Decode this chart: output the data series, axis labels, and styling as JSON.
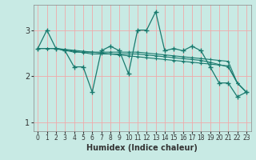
{
  "xlabel": "Humidex (Indice chaleur)",
  "background_color": "#c8eae4",
  "grid_color": "#f0aaaa",
  "line_color": "#1a7a6e",
  "x_min": -0.5,
  "x_max": 23.5,
  "y_min": 0.8,
  "y_max": 3.55,
  "yticks": [
    1,
    2,
    3
  ],
  "xticks": [
    0,
    1,
    2,
    3,
    4,
    5,
    6,
    7,
    8,
    9,
    10,
    11,
    12,
    13,
    14,
    15,
    16,
    17,
    18,
    19,
    20,
    21,
    22,
    23
  ],
  "series": [
    [
      2.6,
      3.0,
      2.6,
      2.55,
      2.2,
      2.2,
      1.65,
      2.55,
      2.65,
      2.55,
      2.05,
      3.0,
      3.0,
      3.4,
      2.55,
      2.6,
      2.55,
      2.65,
      2.55,
      2.2,
      1.85,
      1.85,
      1.55,
      1.65
    ],
    [
      2.6,
      2.6,
      2.6,
      2.58,
      2.56,
      2.54,
      2.52,
      2.5,
      2.48,
      2.46,
      2.44,
      2.42,
      2.4,
      2.38,
      2.36,
      2.34,
      2.32,
      2.3,
      2.28,
      2.26,
      2.24,
      2.22,
      1.85,
      1.65
    ],
    [
      2.6,
      2.6,
      2.6,
      2.57,
      2.54,
      2.51,
      2.48,
      2.48,
      2.48,
      2.48,
      2.48,
      2.48,
      2.46,
      2.44,
      2.42,
      2.4,
      2.38,
      2.36,
      2.34,
      2.3,
      2.25,
      2.2,
      1.85,
      1.65
    ],
    [
      2.6,
      2.6,
      2.6,
      2.56,
      2.52,
      2.52,
      2.52,
      2.52,
      2.52,
      2.52,
      2.52,
      2.52,
      2.5,
      2.48,
      2.46,
      2.44,
      2.42,
      2.4,
      2.38,
      2.36,
      2.34,
      2.32,
      1.85,
      1.65
    ]
  ]
}
